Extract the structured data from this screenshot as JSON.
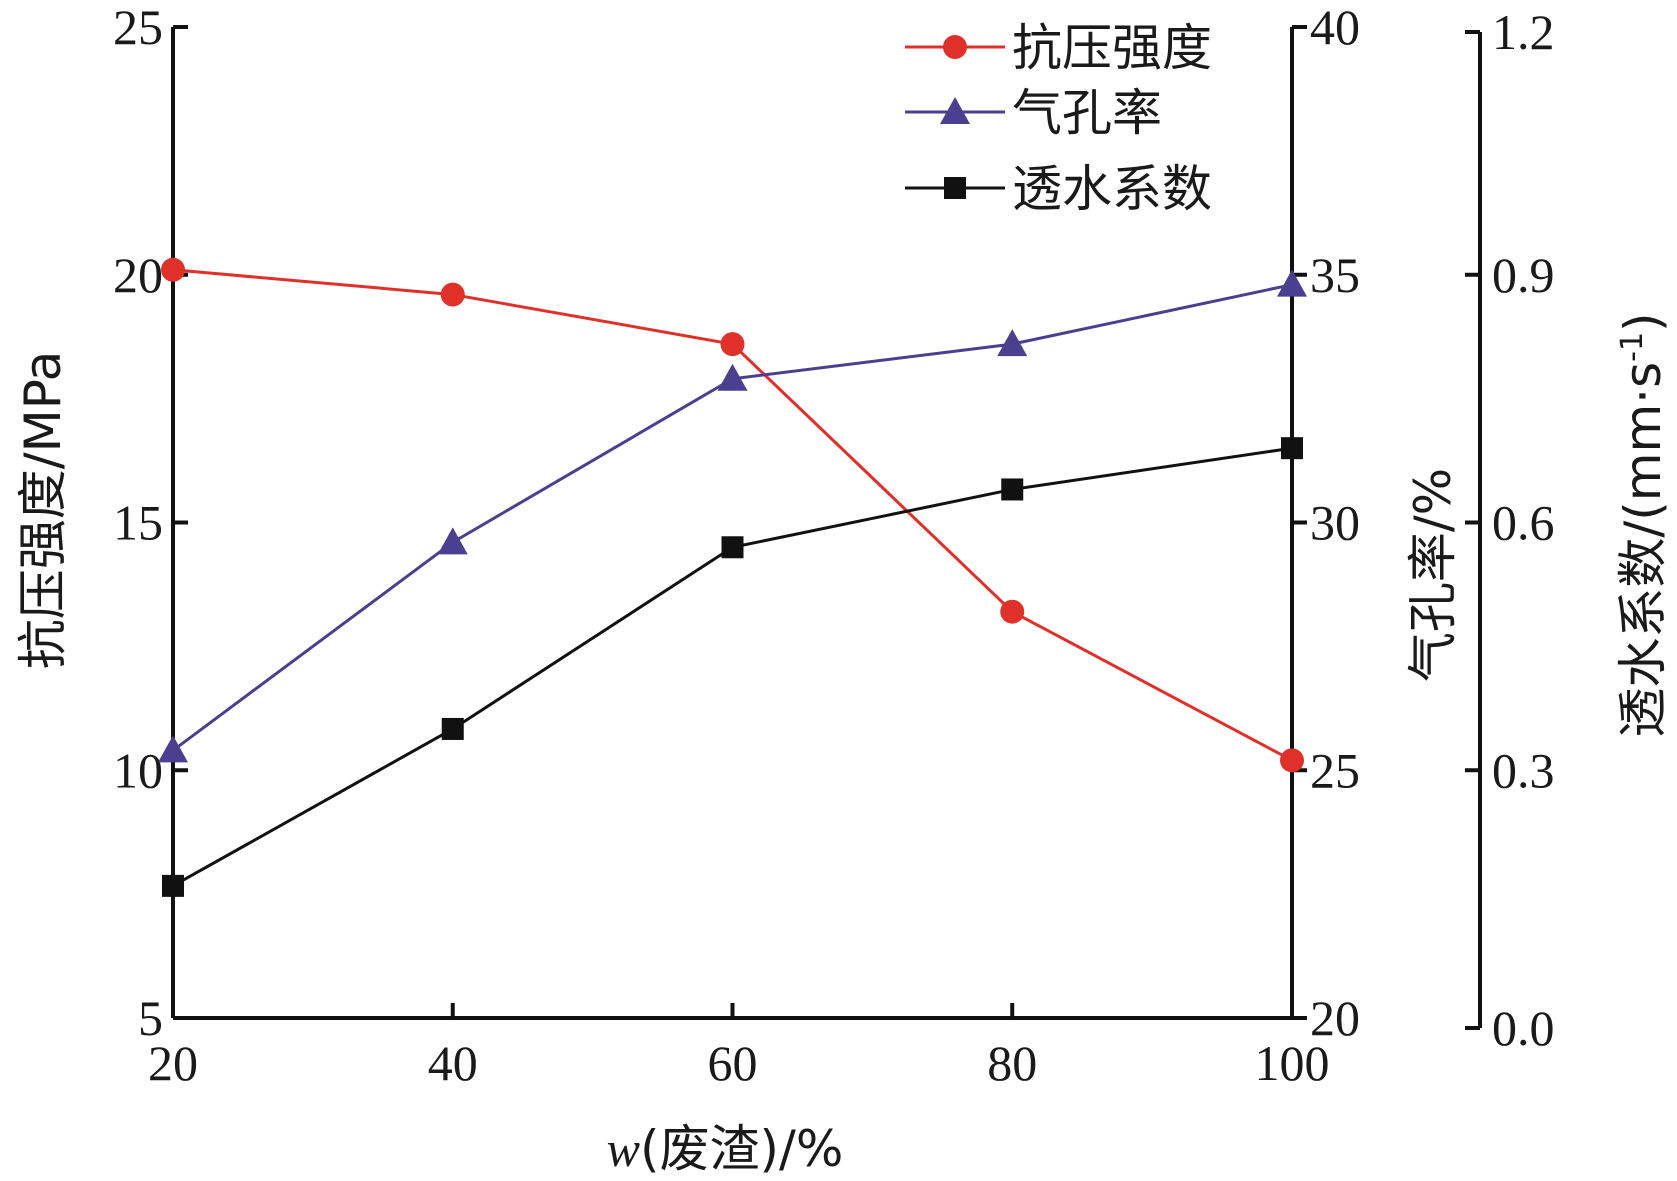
{
  "chart_data": {
    "type": "line",
    "x": [
      20,
      40,
      60,
      80,
      100
    ],
    "xlabel": {
      "variable": "w",
      "rest": "(废渣)/%"
    },
    "xlim": [
      20,
      100
    ],
    "xticks": [
      "20",
      "40",
      "60",
      "80",
      "100"
    ],
    "axes": {
      "left": {
        "label": "抗压强度/MPa",
        "ylim": [
          5,
          25
        ],
        "ticks": [
          "5",
          "10",
          "15",
          "20",
          "25"
        ],
        "tick_values": [
          5,
          10,
          15,
          20,
          25
        ]
      },
      "right1": {
        "label": "气孔率/%",
        "ylim": [
          20,
          40
        ],
        "ticks": [
          "20",
          "25",
          "30",
          "35",
          "40"
        ],
        "tick_values": [
          20,
          25,
          30,
          35,
          40
        ]
      },
      "right2": {
        "label_main": "透水系数/(mm·s",
        "label_sup": "-1",
        "label_close": ")",
        "ylim": [
          0.0,
          1.2
        ],
        "ticks": [
          "0.0",
          "0.3",
          "0.6",
          "0.9",
          "1.2"
        ],
        "tick_values": [
          0.0,
          0.3,
          0.6,
          0.9,
          1.2
        ]
      }
    },
    "series": [
      {
        "name": "抗压强度",
        "axis": "left",
        "color": "#e0302a",
        "marker": "circle",
        "values": [
          20.1,
          19.6,
          18.6,
          13.2,
          10.2
        ]
      },
      {
        "name": "气孔率",
        "axis": "right1",
        "color": "#4b3f8f",
        "marker": "triangle",
        "values": [
          25.4,
          29.6,
          32.9,
          33.6,
          34.8
        ]
      },
      {
        "name": "透水系数",
        "axis": "right2",
        "color": "#111111",
        "marker": "square",
        "values": [
          0.16,
          0.35,
          0.57,
          0.64,
          0.69
        ]
      }
    ],
    "legend": "top-right",
    "grid": false
  }
}
